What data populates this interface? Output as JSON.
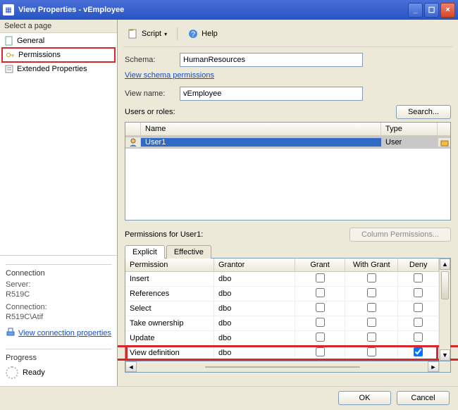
{
  "window": {
    "title": "View Properties - vEmployee"
  },
  "sidebar": {
    "header": "Select a page",
    "items": [
      {
        "label": "General"
      },
      {
        "label": "Permissions"
      },
      {
        "label": "Extended Properties"
      }
    ]
  },
  "connection": {
    "header": "Connection",
    "server_label": "Server:",
    "server": "R519C",
    "conn_label": "Connection:",
    "conn": "R519C\\Atif",
    "view_link": "View connection properties"
  },
  "progress": {
    "header": "Progress",
    "status": "Ready"
  },
  "toolbar": {
    "script": "Script",
    "help": "Help"
  },
  "form": {
    "schema_label": "Schema:",
    "schema": "HumanResources",
    "schema_link": "View schema permissions",
    "viewname_label": "View name:",
    "viewname": "vEmployee",
    "users_label": "Users or roles:",
    "search": "Search..."
  },
  "usersgrid": {
    "cols": [
      "",
      "Name",
      "Type"
    ],
    "rows": [
      {
        "name": "User1",
        "type": "User"
      }
    ]
  },
  "perm_section": {
    "label_prefix": "Permissions for ",
    "user": "User1",
    "colperm_btn": "Column Permissions..."
  },
  "tabs": {
    "explicit": "Explicit",
    "effective": "Effective"
  },
  "permgrid": {
    "cols": [
      "Permission",
      "Grantor",
      "Grant",
      "With Grant",
      "Deny"
    ],
    "rows": [
      {
        "perm": "Insert",
        "grantor": "dbo",
        "grant": false,
        "withgrant": false,
        "deny": false
      },
      {
        "perm": "References",
        "grantor": "dbo",
        "grant": false,
        "withgrant": false,
        "deny": false
      },
      {
        "perm": "Select",
        "grantor": "dbo",
        "grant": false,
        "withgrant": false,
        "deny": false
      },
      {
        "perm": "Take ownership",
        "grantor": "dbo",
        "grant": false,
        "withgrant": false,
        "deny": false
      },
      {
        "perm": "Update",
        "grantor": "dbo",
        "grant": false,
        "withgrant": false,
        "deny": false
      },
      {
        "perm": "View definition",
        "grantor": "dbo",
        "grant": false,
        "withgrant": false,
        "deny": true,
        "highlight": true
      }
    ]
  },
  "footer": {
    "ok": "OK",
    "cancel": "Cancel"
  },
  "colors": {
    "accent": "#2754c4",
    "highlight": "#d9262a",
    "select_row": "#316ac5"
  }
}
